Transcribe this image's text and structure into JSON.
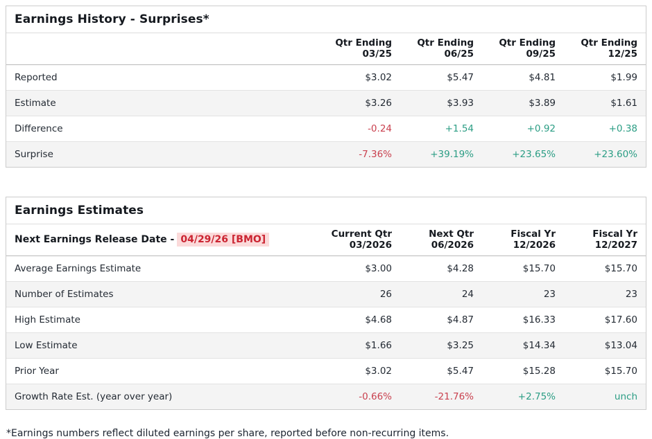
{
  "colors": {
    "positive": "#2b9d84",
    "negative": "#c9404e",
    "highlight_bg": "#fbdada",
    "highlight_text": "#cb2431",
    "stripe": "#f4f4f4",
    "text": "#232a33"
  },
  "earnings_history": {
    "title": "Earnings History - Surprises*",
    "columns": [
      {
        "line1": "Qtr Ending",
        "line2": "03/25"
      },
      {
        "line1": "Qtr Ending",
        "line2": "06/25"
      },
      {
        "line1": "Qtr Ending",
        "line2": "09/25"
      },
      {
        "line1": "Qtr Ending",
        "line2": "12/25"
      }
    ],
    "rows": [
      {
        "label": "Reported",
        "values": [
          "$3.02",
          "$5.47",
          "$4.81",
          "$1.99"
        ],
        "styles": [
          "",
          "",
          "",
          ""
        ]
      },
      {
        "label": "Estimate",
        "values": [
          "$3.26",
          "$3.93",
          "$3.89",
          "$1.61"
        ],
        "styles": [
          "",
          "",
          "",
          ""
        ]
      },
      {
        "label": "Difference",
        "values": [
          "-0.24",
          "+1.54",
          "+0.92",
          "+0.38"
        ],
        "styles": [
          "neg",
          "pos",
          "pos",
          "pos"
        ]
      },
      {
        "label": "Surprise",
        "values": [
          "-7.36%",
          "+39.19%",
          "+23.65%",
          "+23.60%"
        ],
        "styles": [
          "neg",
          "pos",
          "pos",
          "pos"
        ]
      }
    ]
  },
  "earnings_estimates": {
    "title": "Earnings Estimates",
    "release_date_label": "Next Earnings Release Date -",
    "release_date_value": "04/29/26 [BMO]",
    "columns": [
      {
        "line1": "Current Qtr",
        "line2": "03/2026"
      },
      {
        "line1": "Next Qtr",
        "line2": "06/2026"
      },
      {
        "line1": "Fiscal Yr",
        "line2": "12/2026"
      },
      {
        "line1": "Fiscal Yr",
        "line2": "12/2027"
      }
    ],
    "rows": [
      {
        "label": "Average Earnings Estimate",
        "values": [
          "$3.00",
          "$4.28",
          "$15.70",
          "$15.70"
        ],
        "styles": [
          "",
          "",
          "",
          ""
        ]
      },
      {
        "label": "Number of Estimates",
        "values": [
          "26",
          "24",
          "23",
          "23"
        ],
        "styles": [
          "",
          "",
          "",
          ""
        ]
      },
      {
        "label": "High Estimate",
        "values": [
          "$4.68",
          "$4.87",
          "$16.33",
          "$17.60"
        ],
        "styles": [
          "",
          "",
          "",
          ""
        ]
      },
      {
        "label": "Low Estimate",
        "values": [
          "$1.66",
          "$3.25",
          "$14.34",
          "$13.04"
        ],
        "styles": [
          "",
          "",
          "",
          ""
        ]
      },
      {
        "label": "Prior Year",
        "values": [
          "$3.02",
          "$5.47",
          "$15.28",
          "$15.70"
        ],
        "styles": [
          "",
          "",
          "",
          ""
        ]
      },
      {
        "label": "Growth Rate Est. (year over year)",
        "values": [
          "-0.66%",
          "-21.76%",
          "+2.75%",
          "unch"
        ],
        "styles": [
          "neg",
          "neg",
          "pos",
          "pos"
        ]
      }
    ]
  },
  "footnote": "*Earnings numbers reflect diluted earnings per share, reported before non-recurring items."
}
